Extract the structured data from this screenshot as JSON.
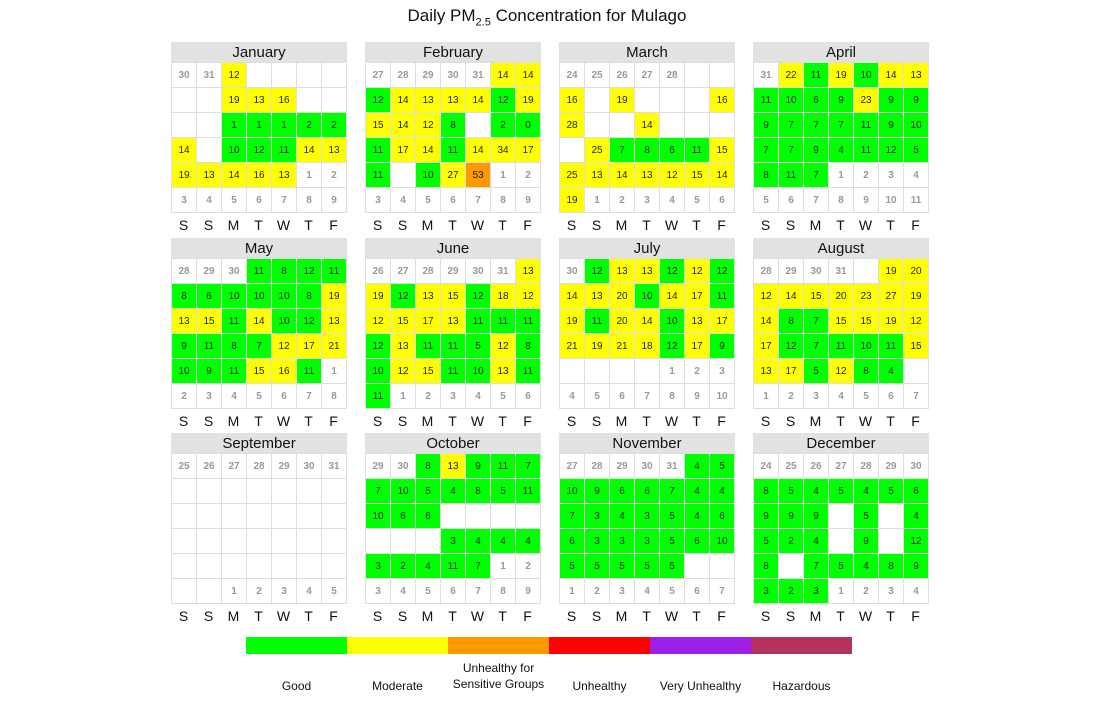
{
  "title_main": "Daily PM",
  "title_sub": "2.5",
  "title_rest": " Concentration for Mulago",
  "weekdays": [
    "S",
    "S",
    "M",
    "T",
    "W",
    "T",
    "F"
  ],
  "legend": [
    {
      "label": "Good",
      "color": "#00ff00"
    },
    {
      "label": "Moderate",
      "color": "#ffff00"
    },
    {
      "label": "Unhealthy for\nSensitive Groups",
      "color": "#ff9900"
    },
    {
      "label": "Unhealthy",
      "color": "#ff0000"
    },
    {
      "label": "Very Unhealthy",
      "color": "#9d1fe8"
    },
    {
      "label": "Hazardous",
      "color": "#b5325f"
    }
  ],
  "chart_data": {
    "type": "heatmap",
    "title": "Daily PM2.5 Concentration for Mulago",
    "categories": [
      "Good",
      "Moderate",
      "Unhealthy for Sensitive Groups",
      "Unhealthy",
      "Very Unhealthy",
      "Hazardous"
    ],
    "category_colors": [
      "#00ff00",
      "#ffff00",
      "#ff9900",
      "#ff0000",
      "#9d1fe8",
      "#b5325f"
    ],
    "months": [
      {
        "name": "January",
        "cells": [
          "d30",
          "d31",
          "Y12",
          "",
          "",
          "",
          "",
          "",
          "",
          "Y19",
          "Y13",
          "Y16",
          "",
          "",
          "",
          "",
          "G1",
          "G1",
          "G1",
          "G2",
          "G2",
          "Y14",
          "",
          "G10",
          "G12",
          "G11",
          "Y14",
          "Y13",
          "Y19",
          "Y13",
          "Y14",
          "Y16",
          "Y13",
          "d1",
          "d2",
          "d3",
          "d4",
          "d5",
          "d6",
          "d7",
          "d8",
          "d9"
        ]
      },
      {
        "name": "February",
        "cells": [
          "d27",
          "d28",
          "d29",
          "d30",
          "d31",
          "Y14",
          "Y14",
          "G12",
          "Y14",
          "Y13",
          "Y13",
          "Y14",
          "G12",
          "Y19",
          "Y15",
          "Y14",
          "Y12",
          "G8",
          "",
          "G2",
          "G0",
          "G11",
          "Y17",
          "Y14",
          "G11",
          "Y14",
          "Y34",
          "Y17",
          "G11",
          "",
          "G10",
          "Y27",
          "O53",
          "d1",
          "d2",
          "d3",
          "d4",
          "d5",
          "d6",
          "d7",
          "d8",
          "d9"
        ]
      },
      {
        "name": "March",
        "cells": [
          "d24",
          "d25",
          "d26",
          "d27",
          "d28",
          "",
          "",
          "Y16",
          "",
          "Y19",
          "",
          "",
          "",
          "Y16",
          "Y28",
          "",
          "",
          "Y14",
          "",
          "",
          "",
          "",
          "Y25",
          "G7",
          "G8",
          "G6",
          "G11",
          "Y15",
          "Y25",
          "Y13",
          "Y14",
          "Y13",
          "Y12",
          "Y15",
          "Y14",
          "Y19",
          "d1",
          "d2",
          "d3",
          "d4",
          "d5",
          "d6"
        ]
      },
      {
        "name": "April",
        "cells": [
          "d31",
          "Y22",
          "G11",
          "Y19",
          "G10",
          "Y14",
          "Y13",
          "G11",
          "G10",
          "G6",
          "G9",
          "Y23",
          "G9",
          "G9",
          "G9",
          "G7",
          "G7",
          "G7",
          "G11",
          "G9",
          "G10",
          "G7",
          "G7",
          "G9",
          "G4",
          "G11",
          "G12",
          "G5",
          "G8",
          "G11",
          "G7",
          "d1",
          "d2",
          "d3",
          "d4",
          "d5",
          "d6",
          "d7",
          "d8",
          "d9",
          "d10",
          "d11"
        ]
      },
      {
        "name": "May",
        "cells": [
          "d28",
          "d29",
          "d30",
          "G11",
          "G8",
          "G12",
          "G11",
          "G8",
          "G6",
          "G10",
          "G10",
          "G10",
          "G8",
          "Y19",
          "Y13",
          "Y15",
          "G11",
          "Y14",
          "G10",
          "G12",
          "Y13",
          "G9",
          "G11",
          "G8",
          "G7",
          "Y12",
          "Y17",
          "Y21",
          "G10",
          "G9",
          "G11",
          "Y15",
          "Y16",
          "G11",
          "d1",
          "d2",
          "d3",
          "d4",
          "d5",
          "d6",
          "d7",
          "d8"
        ]
      },
      {
        "name": "June",
        "cells": [
          "d26",
          "d27",
          "d28",
          "d29",
          "d30",
          "d31",
          "Y13",
          "Y19",
          "G12",
          "Y13",
          "Y15",
          "G12",
          "Y18",
          "Y12",
          "Y12",
          "Y15",
          "Y17",
          "Y13",
          "G11",
          "G11",
          "G11",
          "G12",
          "Y13",
          "G11",
          "G11",
          "G5",
          "Y12",
          "G8",
          "G10",
          "Y12",
          "Y15",
          "G11",
          "G10",
          "Y13",
          "G11",
          "G11",
          "d1",
          "d2",
          "d3",
          "d4",
          "d5",
          "d6"
        ]
      },
      {
        "name": "July",
        "cells": [
          "d30",
          "G12",
          "Y13",
          "Y13",
          "G12",
          "Y12",
          "G12",
          "Y14",
          "Y13",
          "Y20",
          "G10",
          "Y14",
          "Y17",
          "G11",
          "Y19",
          "G11",
          "Y20",
          "Y14",
          "G10",
          "Y13",
          "Y17",
          "Y21",
          "Y19",
          "Y21",
          "Y18",
          "G12",
          "Y17",
          "G9",
          "",
          "",
          "",
          "",
          "d1",
          "d2",
          "d3",
          "d4",
          "d5",
          "d6",
          "d7",
          "d8",
          "d9",
          "d10"
        ]
      },
      {
        "name": "August",
        "cells": [
          "d28",
          "d29",
          "d30",
          "d31",
          "",
          "Y19",
          "Y20",
          "Y12",
          "Y14",
          "Y15",
          "Y20",
          "Y23",
          "Y27",
          "Y19",
          "Y14",
          "G8",
          "G7",
          "Y15",
          "Y15",
          "Y19",
          "Y12",
          "Y17",
          "G12",
          "G7",
          "G11",
          "G10",
          "G11",
          "Y15",
          "Y13",
          "Y17",
          "G5",
          "Y12",
          "G8",
          "G4",
          "",
          "d1",
          "d2",
          "d3",
          "d4",
          "d5",
          "d6",
          "d7"
        ]
      },
      {
        "name": "September",
        "cells": [
          "d25",
          "d26",
          "d27",
          "d28",
          "d29",
          "d30",
          "d31",
          "",
          "",
          "",
          "",
          "",
          "",
          "",
          "",
          "",
          "",
          "",
          "",
          "",
          "",
          "",
          "",
          "",
          "",
          "",
          "",
          "",
          "",
          "",
          "",
          "",
          "",
          "",
          "",
          "",
          "",
          "d1",
          "d2",
          "d3",
          "d4",
          "d5"
        ]
      },
      {
        "name": "October",
        "cells": [
          "d29",
          "d30",
          "G8",
          "Y13",
          "G9",
          "G11",
          "G7",
          "G7",
          "G10",
          "G5",
          "G4",
          "G8",
          "G5",
          "G11",
          "G10",
          "G6",
          "G6",
          "",
          "",
          "",
          "",
          "",
          "",
          "",
          "G3",
          "G4",
          "G4",
          "G4",
          "G3",
          "G2",
          "G4",
          "G11",
          "G7",
          "d1",
          "d2",
          "d3",
          "d4",
          "d5",
          "d6",
          "d7",
          "d8",
          "d9"
        ]
      },
      {
        "name": "November",
        "cells": [
          "d27",
          "d28",
          "d29",
          "d30",
          "d31",
          "G4",
          "G5",
          "G10",
          "G9",
          "G6",
          "G6",
          "G7",
          "G4",
          "G4",
          "G7",
          "G3",
          "G4",
          "G3",
          "G5",
          "G4",
          "G6",
          "G6",
          "G3",
          "G3",
          "G3",
          "G5",
          "G6",
          "G10",
          "G5",
          "G5",
          "G5",
          "G5",
          "G5",
          "",
          "",
          "d1",
          "d2",
          "d3",
          "d4",
          "d5",
          "d6",
          "d7"
        ]
      },
      {
        "name": "December",
        "cells": [
          "d24",
          "d25",
          "d26",
          "d27",
          "d28",
          "d29",
          "d30",
          "G8",
          "G5",
          "G4",
          "G5",
          "G4",
          "G5",
          "G6",
          "G9",
          "G9",
          "G9",
          "",
          "G5",
          "",
          "G4",
          "G5",
          "G2",
          "G4",
          "",
          "G9",
          "",
          "G12",
          "G8",
          "",
          "G7",
          "G5",
          "G4",
          "G8",
          "G9",
          "G3",
          "G2",
          "G3",
          "d1",
          "d2",
          "d3",
          "d4"
        ]
      }
    ]
  }
}
